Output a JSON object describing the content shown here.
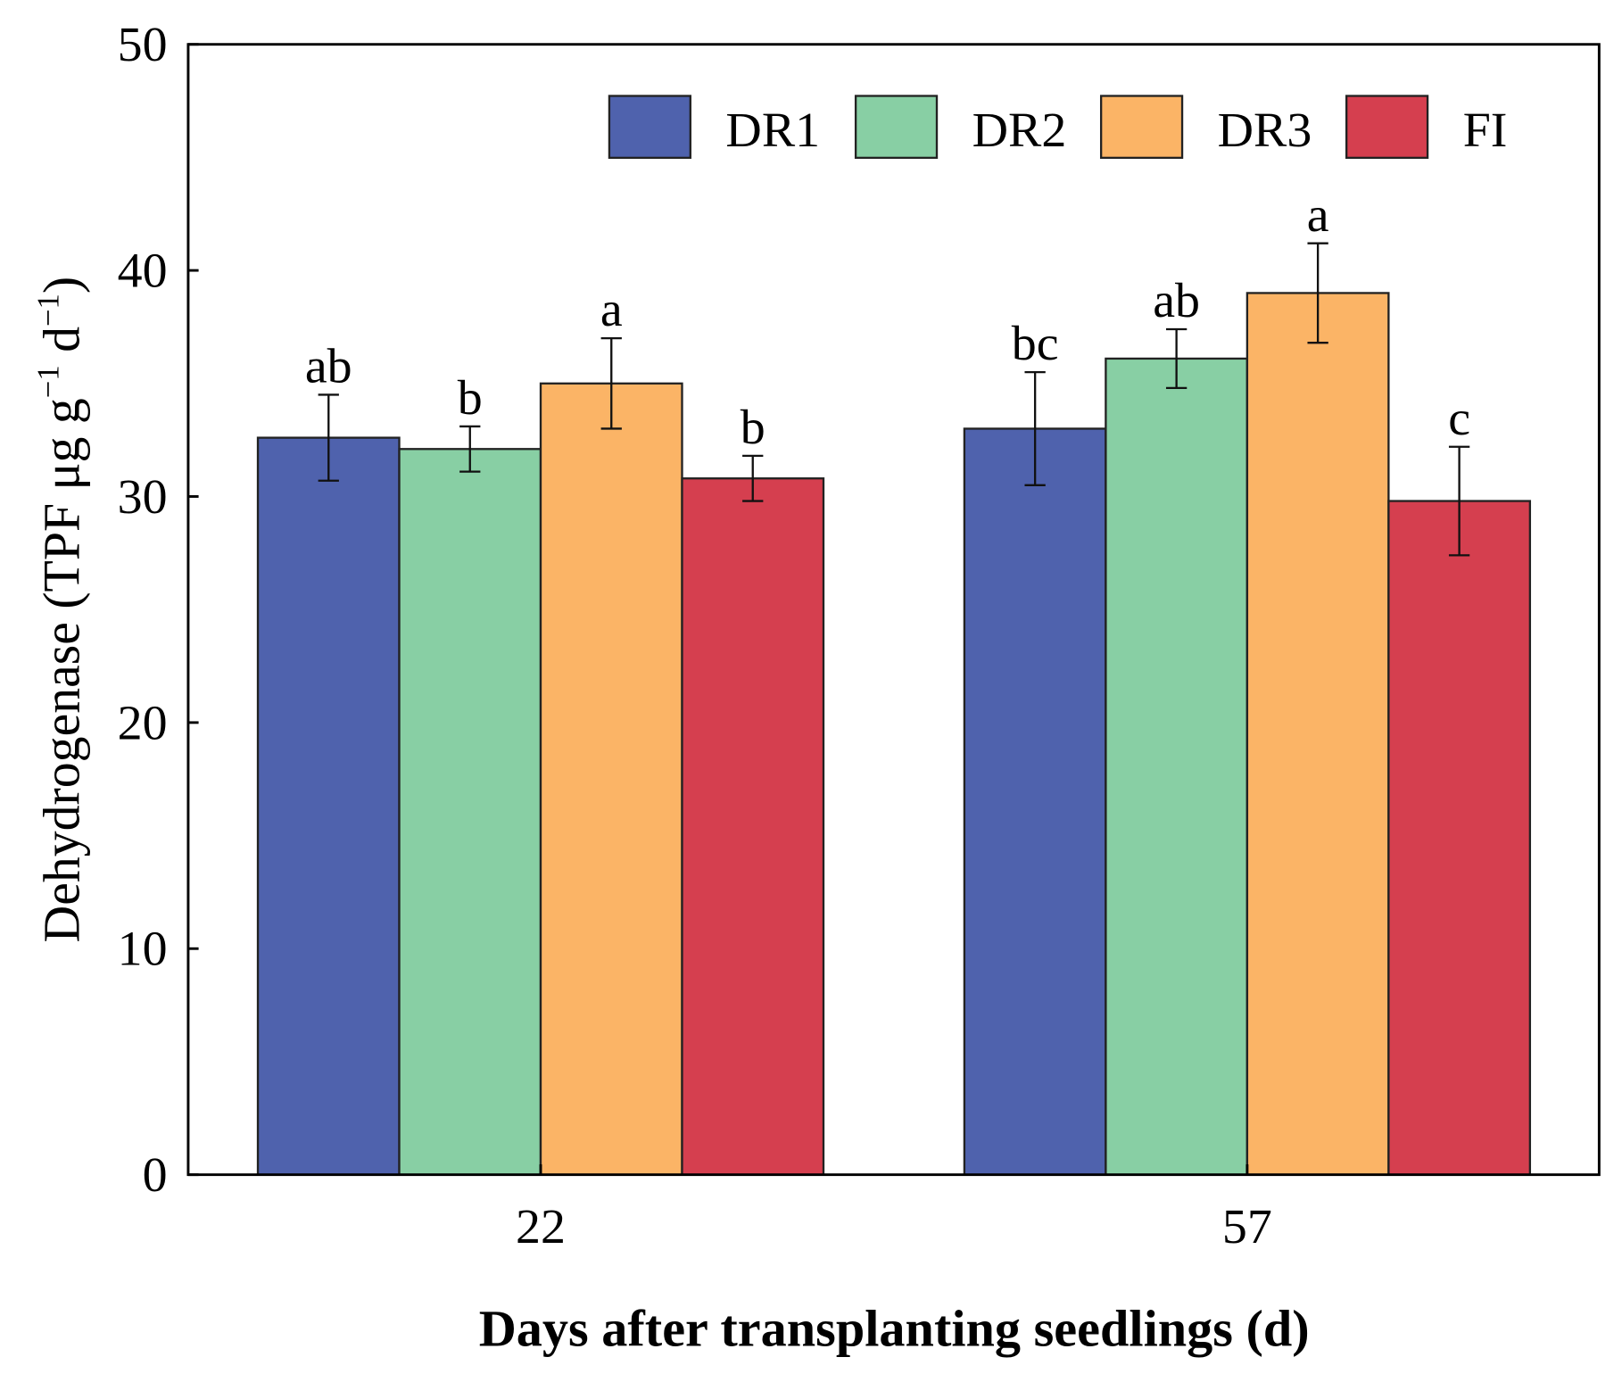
{
  "chart_data": {
    "type": "bar",
    "title": "",
    "xlabel": "Days after transplanting seedlings (d)",
    "ylabel": "Dehydrogenase (TPF μg g⁻¹ d⁻¹)",
    "ylabel_parts": {
      "main": "Dehydrogenase (TPF μg g",
      "sup1": "−1",
      "mid": " d",
      "sup2": "−1",
      "end": ")"
    },
    "ylim": [
      0,
      50
    ],
    "yticks": [
      0,
      10,
      20,
      30,
      40,
      50
    ],
    "ytick_labels": [
      "0",
      "10",
      "20",
      "30",
      "40",
      "50"
    ],
    "categories": [
      "22",
      "57"
    ],
    "legend_position": "top-right",
    "grid": false,
    "series": [
      {
        "name": "DR1",
        "color": "#4f62ad",
        "values": [
          32.6,
          33.0
        ],
        "errors": [
          1.9,
          2.5
        ],
        "letters": [
          "ab",
          "bc"
        ]
      },
      {
        "name": "DR2",
        "color": "#88cfa4",
        "values": [
          32.1,
          36.1
        ],
        "errors": [
          1.0,
          1.3
        ],
        "letters": [
          "b",
          "ab"
        ]
      },
      {
        "name": "DR3",
        "color": "#fbb466",
        "values": [
          35.0,
          39.0
        ],
        "errors": [
          2.0,
          2.2
        ],
        "letters": [
          "a",
          "a"
        ]
      },
      {
        "name": "FI",
        "color": "#d53f4f",
        "values": [
          30.8,
          29.8
        ],
        "errors": [
          1.0,
          2.4
        ],
        "letters": [
          "b",
          "c"
        ]
      }
    ]
  }
}
